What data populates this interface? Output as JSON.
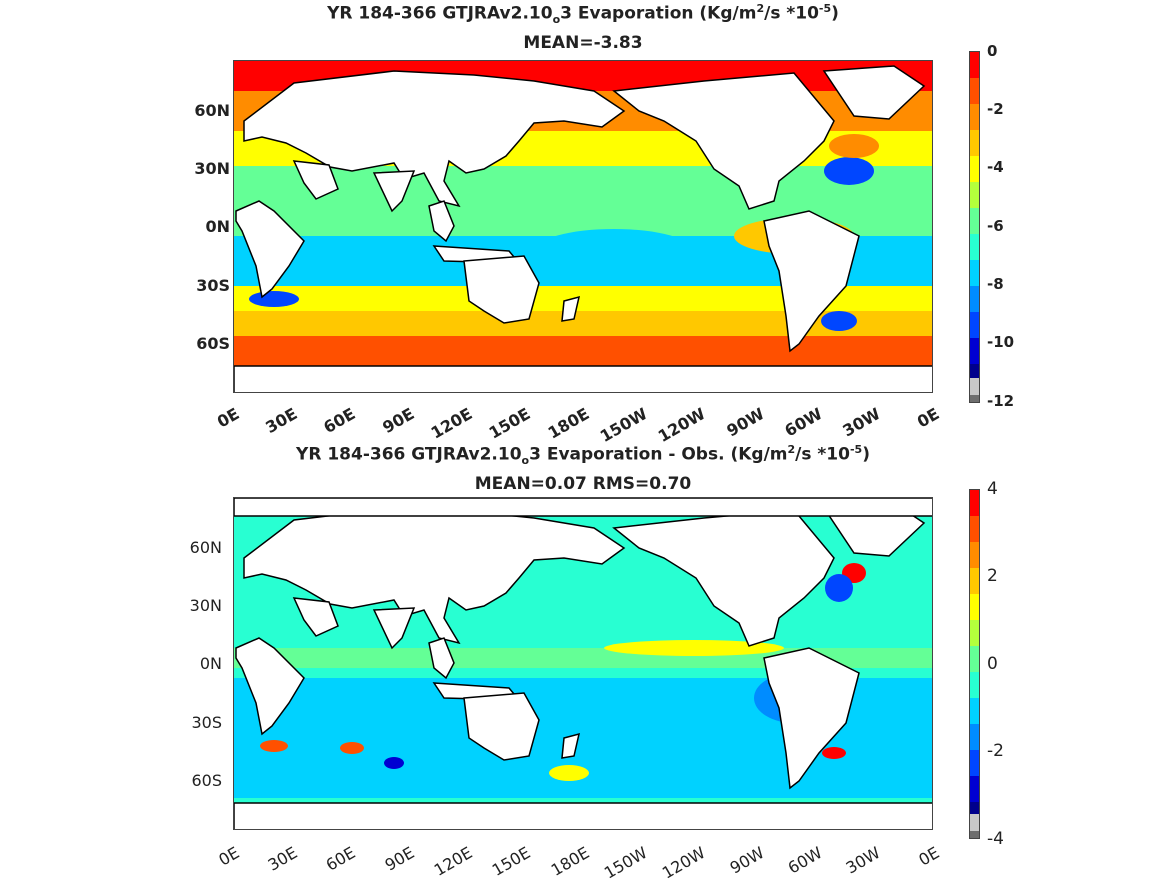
{
  "panel1": {
    "title_a": "YR 184-366 GTJRAv2.10",
    "title_sub": "o",
    "title_b": "3  Evaporation (Kg/m",
    "title_sup1": "2",
    "title_c": "/s *10",
    "title_sup2": "-5",
    "title_d": ")",
    "subtitle": "MEAN=-3.83",
    "y_ticks": [
      "60N",
      "30N",
      "0N",
      "30S",
      "60S"
    ],
    "x_ticks": [
      "0E",
      "30E",
      "60E",
      "90E",
      "120E",
      "150E",
      "180E",
      "150W",
      "120W",
      "90W",
      "60W",
      "30W",
      "0E"
    ],
    "colorbar_ticks": [
      "0",
      "-2",
      "-4",
      "-6",
      "-8",
      "-10",
      "-12"
    ]
  },
  "panel2": {
    "title_a": "YR 184-366 GTJRAv2.10",
    "title_sub": "o",
    "title_b": "3 Evaporation - Obs. (Kg/m",
    "title_sup1": "2",
    "title_c": "/s *10",
    "title_sup2": "-5",
    "title_d": ")",
    "subtitle": "MEAN=0.07   RMS=0.70",
    "y_ticks": [
      "60N",
      "30N",
      "0N",
      "30S",
      "60S"
    ],
    "x_ticks": [
      "0E",
      "30E",
      "60E",
      "90E",
      "120E",
      "150E",
      "180E",
      "150W",
      "120W",
      "90W",
      "60W",
      "30W",
      "0E"
    ],
    "colorbar_ticks": [
      "4",
      "2",
      "0",
      "-2",
      "-4"
    ]
  },
  "colors": {
    "jet": [
      "#ff0000",
      "#ff5000",
      "#ff8c00",
      "#ffc800",
      "#ffff00",
      "#b4ff3c",
      "#64ff96",
      "#28ffd2",
      "#00d2ff",
      "#008cff",
      "#0046ff",
      "#0000d2",
      "#00008c"
    ],
    "land": "#ffffff",
    "coast": "#000000"
  }
}
